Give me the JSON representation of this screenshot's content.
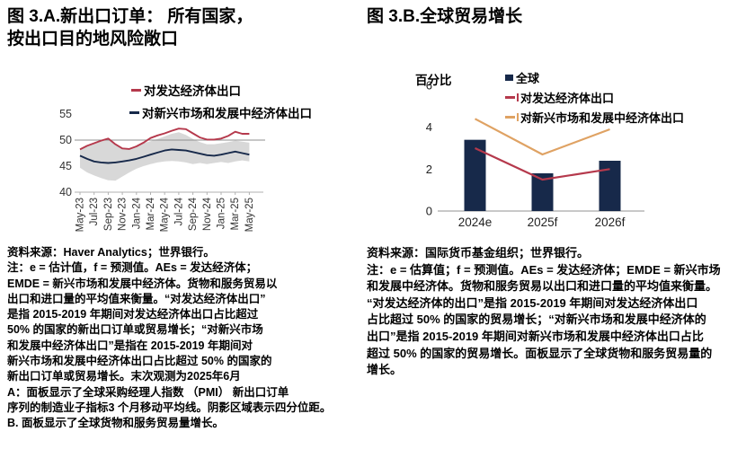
{
  "colors": {
    "navy": "#17294a",
    "red": "#b5394c",
    "orange": "#dfa263",
    "band": "#d8d8d8",
    "grid": "#8f8f8f",
    "axis": "#b0b0b0",
    "tick_text": "#333333"
  },
  "panel_a": {
    "title_line1": "图 3.A.新出口订单： 所有国家，",
    "title_line2": "按出口目的地风险敞口",
    "legend": [
      {
        "label": "对发达经济体出口"
      },
      {
        "label": "对新兴市场和发展中经济体出口"
      }
    ],
    "source": "资料来源：Haver Analytics；世界银行。",
    "notes": [
      "注：e = 估计值，f = 预测值。AEs = 发达经济体；",
      "EMDE = 新兴市场和发展中经济体。货物和服务贸易以",
      "出口和进口量的平均值来衡量。“对发达经济体出口”",
      "是指 2015-2019 年期间对发达经济体出口占比超过",
      "50% 的国家的新出口订单或贸易增长；“对新兴市场",
      "和发展中经济体出口”是指在 2015-2019 年期间对",
      "新兴市场和发展中经济体出口占比超过 50% 的国家的",
      "新出口订单或贸易增长。末次观测为2025年6月",
      "A：面板显示了全球采购经理人指数 （PMI） 新出口订单",
      "序列的制造业子指标3 个月移动平均线。阴影区域表示四分位距。",
      "B. 面板显示了全球货物和服务贸易量增长。"
    ]
  },
  "panel_b": {
    "title": "图 3.B.全球贸易增长",
    "ylabel": "百分比",
    "legend": [
      {
        "label": "全球"
      },
      {
        "label": "对发达经济体出口"
      },
      {
        "label": "对新兴市场和发展中经济体出口"
      }
    ],
    "source": "资料来源：国际货币基金组织；世界银行。",
    "notes": [
      "注：e = 估算值；f = 预测值。AEs = 发达经济体；EMDE = 新兴市场",
      "和发展中经济体。货物和服务贸易以出口和进口量的平均值来衡量。",
      "“对发达经济体的出口”是指 2015-2019 年期间对发达经济体出口",
      "占比超过 50% 的国家的贸易增长；“对新兴市场和发展中经济体的",
      "出口”是指 2015-2019 年期间对新兴市场和发展中经济体出口占比",
      "超过 50% 的国家的贸易增长。面板显示了全球货物和服务贸易量的",
      "增长。"
    ]
  },
  "chart_data": [
    {
      "type": "line",
      "title": "新出口订单：所有国家，按出口目的地风险敞口",
      "x": [
        "May-23",
        "Jun-23",
        "Jul-23",
        "Aug-23",
        "Sep-23",
        "Oct-23",
        "Nov-23",
        "Dec-23",
        "Jan-24",
        "Feb-24",
        "Mar-24",
        "Apr-24",
        "May-24",
        "Jun-24",
        "Jul-24",
        "Aug-24",
        "Sep-24",
        "Oct-24",
        "Nov-24",
        "Dec-24",
        "Jan-25",
        "Feb-25",
        "Mar-25",
        "Apr-25",
        "May-25"
      ],
      "x_tick_labels": [
        "May-23",
        "Jul-23",
        "Sep-23",
        "Nov-23",
        "Jan-24",
        "Mar-24",
        "May-24",
        "Jul-24",
        "Sep-24",
        "Nov-24",
        "Jan-25",
        "Mar-25",
        "May-25"
      ],
      "series": [
        {
          "name": "对发达经济体出口",
          "values": [
            48.2,
            48.9,
            49.4,
            49.9,
            50.3,
            49.2,
            48.4,
            48.3,
            48.8,
            49.5,
            50.4,
            50.9,
            51.3,
            51.8,
            52.2,
            52.1,
            51.3,
            50.5,
            50.1,
            50.1,
            50.3,
            50.8,
            51.6,
            51.2,
            51.2
          ]
        },
        {
          "name": "对新兴市场和发展中经济体出口",
          "values": [
            47.0,
            46.4,
            45.9,
            45.7,
            45.6,
            45.7,
            45.9,
            46.1,
            46.4,
            46.8,
            47.2,
            47.6,
            48.0,
            48.2,
            48.1,
            48.0,
            47.7,
            47.4,
            47.1,
            47.0,
            47.2,
            47.5,
            47.8,
            47.5,
            47.2
          ]
        }
      ],
      "band": {
        "name": "四分位距",
        "lower": [
          44.7,
          43.8,
          43.2,
          42.7,
          42.3,
          42.2,
          43.0,
          43.8,
          44.5,
          45.0,
          45.4,
          45.7,
          45.9,
          46.0,
          45.9,
          45.7,
          45.4,
          45.6,
          45.4,
          45.6,
          45.8,
          45.6,
          45.9,
          46.1,
          45.9
        ],
        "upper": [
          48.4,
          48.9,
          49.3,
          49.8,
          50.2,
          49.1,
          48.3,
          48.3,
          48.8,
          49.4,
          49.8,
          50.2,
          50.7,
          51.2,
          51.5,
          51.0,
          50.2,
          49.6,
          49.2,
          49.2,
          49.4,
          49.6,
          49.9,
          49.7,
          49.5
        ]
      },
      "ylim": [
        40,
        55
      ],
      "yticks": [
        55,
        50,
        45,
        40
      ],
      "refline": 50,
      "grid": false,
      "legend_position": "top"
    },
    {
      "type": "bar",
      "title": "全球贸易增长",
      "categories": [
        "2024e",
        "2025f",
        "2026f"
      ],
      "series": [
        {
          "name": "全球",
          "type": "bar",
          "values": [
            3.4,
            1.8,
            2.4
          ]
        },
        {
          "name": "对发达经济体出口",
          "type": "line",
          "values": [
            3.0,
            1.5,
            2.0
          ]
        },
        {
          "name": "对新兴市场和发展中经济体出口",
          "type": "line",
          "values": [
            4.4,
            2.7,
            3.9
          ]
        }
      ],
      "xlabel": "",
      "ylabel": "百分比",
      "ylim": [
        0,
        6
      ],
      "yticks": [
        6,
        4,
        2,
        0
      ],
      "grid": false,
      "legend_position": "top-right"
    }
  ]
}
